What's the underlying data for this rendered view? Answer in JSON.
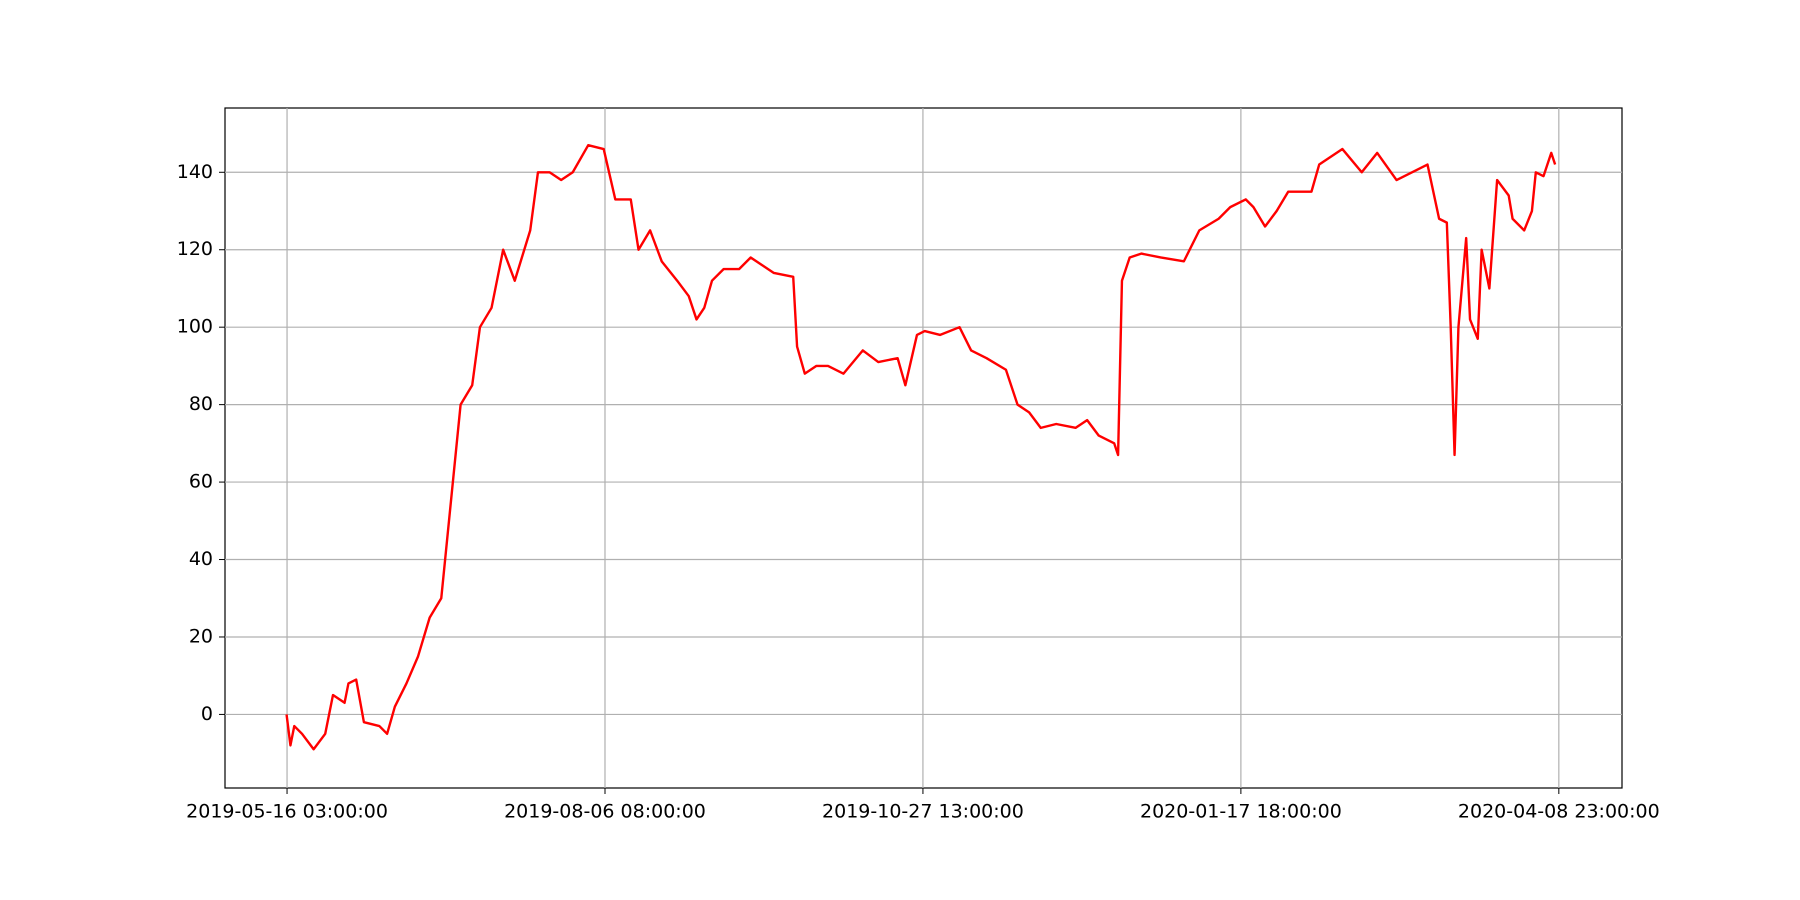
{
  "chart_data": {
    "type": "line",
    "x": [
      "2019-05-16",
      "2019-05-17",
      "2019-05-18",
      "2019-05-20",
      "2019-05-23",
      "2019-05-26",
      "2019-05-28",
      "2019-05-31",
      "2019-06-01",
      "2019-06-03",
      "2019-06-05",
      "2019-06-09",
      "2019-06-11",
      "2019-06-13",
      "2019-06-16",
      "2019-06-19",
      "2019-06-22",
      "2019-06-25",
      "2019-06-27",
      "2019-06-28",
      "2019-06-30",
      "2019-07-03",
      "2019-07-05",
      "2019-07-08",
      "2019-07-11",
      "2019-07-14",
      "2019-07-18",
      "2019-07-20",
      "2019-07-23",
      "2019-07-26",
      "2019-07-29",
      "2019-08-02",
      "2019-08-06",
      "2019-08-09",
      "2019-08-13",
      "2019-08-15",
      "2019-08-18",
      "2019-08-21",
      "2019-08-25",
      "2019-08-28",
      "2019-08-30",
      "2019-09-01",
      "2019-09-03",
      "2019-09-06",
      "2019-09-10",
      "2019-09-13",
      "2019-09-16",
      "2019-09-19",
      "2019-09-24",
      "2019-09-25",
      "2019-09-27",
      "2019-09-30",
      "2019-10-03",
      "2019-10-07",
      "2019-10-12",
      "2019-10-16",
      "2019-10-21",
      "2019-10-23",
      "2019-10-26",
      "2019-10-28",
      "2019-11-01",
      "2019-11-06",
      "2019-11-09",
      "2019-11-13",
      "2019-11-18",
      "2019-11-21",
      "2019-11-24",
      "2019-11-27",
      "2019-12-01",
      "2019-12-06",
      "2019-12-09",
      "2019-12-12",
      "2019-12-16",
      "2019-12-17",
      "2019-12-18",
      "2019-12-20",
      "2019-12-23",
      "2019-12-28",
      "2020-01-03",
      "2020-01-07",
      "2020-01-12",
      "2020-01-15",
      "2020-01-19",
      "2020-01-21",
      "2020-01-24",
      "2020-01-27",
      "2020-01-30",
      "2020-02-05",
      "2020-02-07",
      "2020-02-13",
      "2020-02-18",
      "2020-02-22",
      "2020-02-27",
      "2020-03-02",
      "2020-03-06",
      "2020-03-09",
      "2020-03-11",
      "2020-03-12",
      "2020-03-13",
      "2020-03-14",
      "2020-03-16",
      "2020-03-17",
      "2020-03-19",
      "2020-03-20",
      "2020-03-22",
      "2020-03-24",
      "2020-03-27",
      "2020-03-28",
      "2020-03-31",
      "2020-04-02",
      "2020-04-03",
      "2020-04-05",
      "2020-04-07",
      "2020-04-08"
    ],
    "values": [
      0,
      -8,
      -3,
      -5,
      -9,
      -5,
      5,
      3,
      8,
      9,
      -2,
      -3,
      -5,
      2,
      8,
      15,
      25,
      30,
      50,
      60,
      80,
      85,
      100,
      105,
      120,
      112,
      125,
      140,
      140,
      138,
      140,
      147,
      146,
      133,
      133,
      120,
      125,
      117,
      112,
      108,
      102,
      105,
      112,
      115,
      115,
      118,
      116,
      114,
      113,
      95,
      88,
      90,
      90,
      88,
      94,
      91,
      92,
      85,
      98,
      99,
      98,
      100,
      94,
      92,
      89,
      80,
      78,
      74,
      75,
      74,
      76,
      72,
      70,
      67,
      112,
      118,
      119,
      118,
      117,
      125,
      128,
      131,
      133,
      131,
      126,
      130,
      135,
      135,
      142,
      146,
      140,
      145,
      138,
      140,
      142,
      128,
      127,
      100,
      67,
      100,
      123,
      102,
      97,
      120,
      110,
      138,
      134,
      128,
      125,
      130,
      140,
      139,
      145,
      142
    ],
    "color": "#ff0000",
    "xlim": [
      "2019-04-30 02:00:00",
      "2020-04-25 07:00:00"
    ],
    "xticks": [
      "2019-05-16 03:00:00",
      "2019-08-06 08:00:00",
      "2019-10-27 13:00:00",
      "2020-01-17 18:00:00",
      "2020-04-08 23:00:00"
    ],
    "ylim": [
      -19,
      156.6
    ],
    "yticks": [
      0,
      20,
      40,
      60,
      80,
      100,
      120,
      140
    ],
    "grid": true
  }
}
